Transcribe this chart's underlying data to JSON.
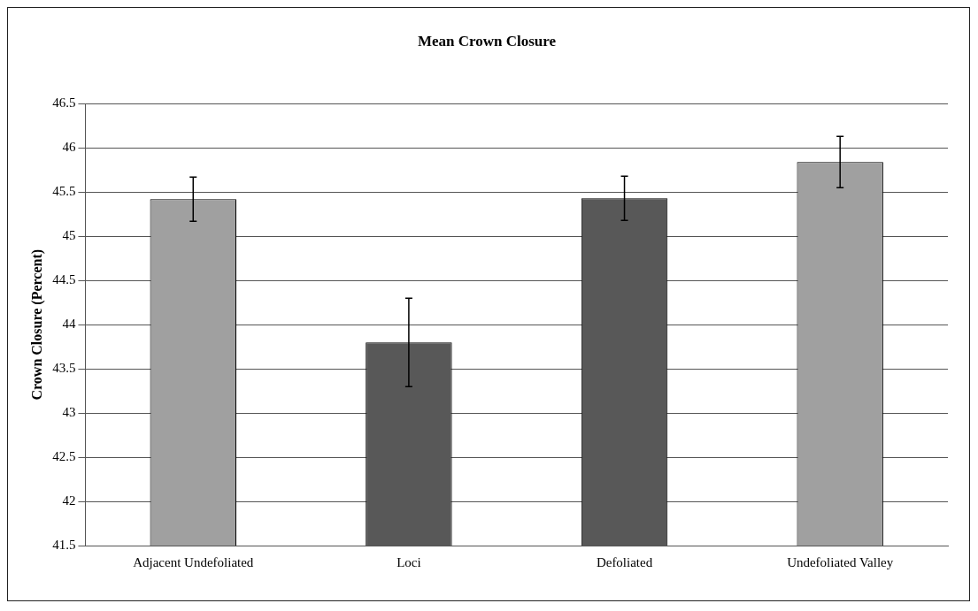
{
  "chart_data": {
    "type": "bar",
    "title": "Mean Crown Closure",
    "ylabel": "Crown Closure (Percent)",
    "categories": [
      "Adjacent Undefoliated",
      "Loci",
      "Defoliated",
      "Undefoliated Valley"
    ],
    "values": [
      45.42,
      43.8,
      45.43,
      45.84
    ],
    "errors": [
      0.25,
      0.5,
      0.25,
      0.29
    ],
    "colors": [
      "#a0a0a0",
      "#585858",
      "#585858",
      "#a0a0a0"
    ],
    "ylim": [
      41.5,
      46.5
    ],
    "yticks": [
      41.5,
      42,
      42.5,
      43,
      43.5,
      44,
      44.5,
      45,
      45.5,
      46,
      46.5
    ],
    "grid": "y",
    "legend": false
  }
}
